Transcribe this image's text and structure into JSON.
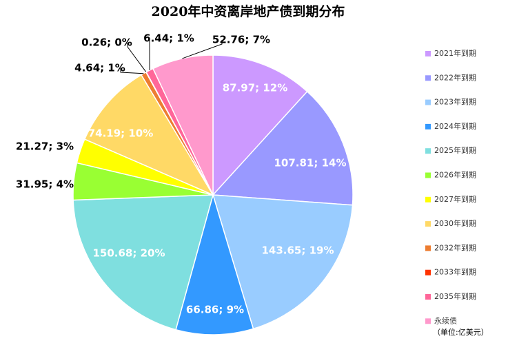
{
  "chart_data": {
    "type": "pie",
    "title": "2020年中资离岸地产债到期分布",
    "categories": [
      "2021年到期",
      "2022年到期",
      "2023年到期",
      "2024年到期",
      "2025年到期",
      "2026年到期",
      "2027年到期",
      "2030年到期",
      "2032年到期",
      "2033年到期",
      "2035年到期",
      "永续债"
    ],
    "values": [
      87.97,
      107.81,
      143.65,
      66.86,
      150.68,
      31.95,
      21.27,
      74.19,
      4.64,
      0.26,
      6.44,
      52.76
    ],
    "value_labels": [
      "87.97; 12%",
      "107.81; 14%",
      "143.65; 19%",
      "66.86; 9%",
      "150.68; 20%",
      "31.95; 4%",
      "21.27; 3%",
      "74.19; 10%",
      "4.64; 1%",
      "0.26; 0%",
      "6.44; 1%",
      "52.76; 7%"
    ],
    "colors": [
      "#cc99ff",
      "#9999ff",
      "#99ccff",
      "#3399ff",
      "#7fdfdf",
      "#99ff33",
      "#ffff00",
      "#ffd966",
      "#ed7d31",
      "#ff3300",
      "#ff6699",
      "#ff99cc"
    ],
    "legend_note": "（单位:亿美元）",
    "legend": "right"
  }
}
